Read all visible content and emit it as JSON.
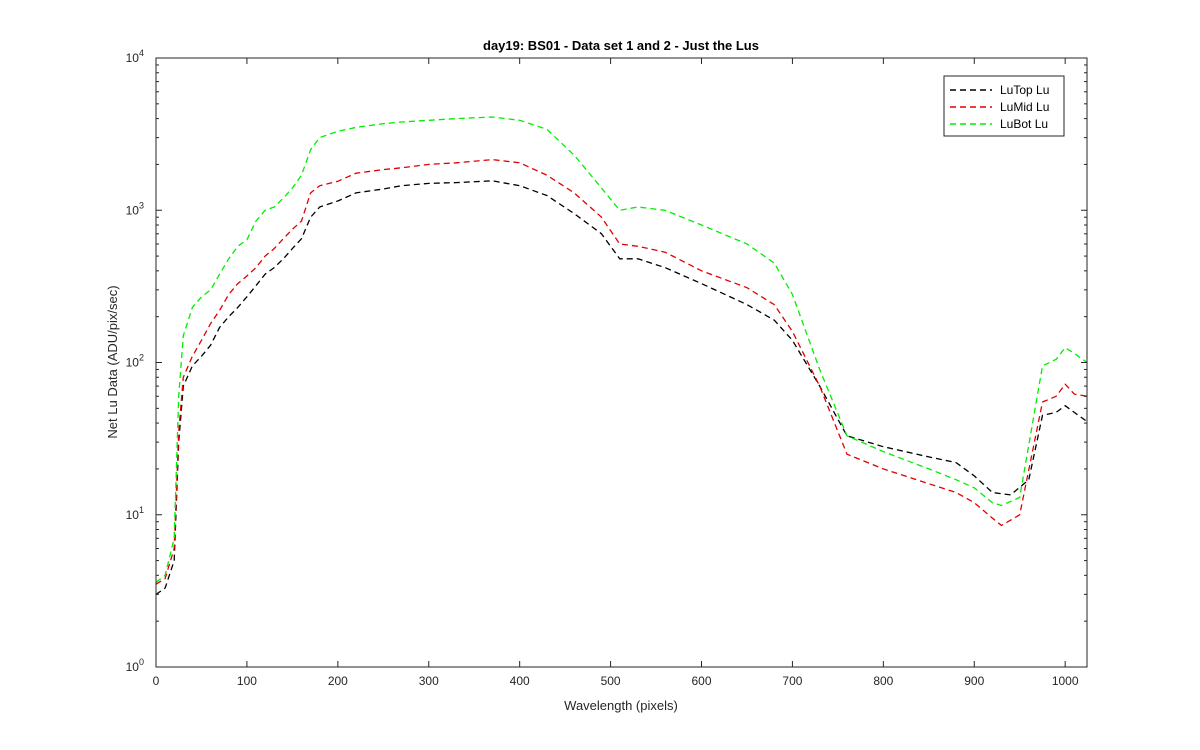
{
  "chart_data": {
    "type": "line",
    "title": "day19: BS01 - Data set 1 and 2 - Just the Lus",
    "xlabel": "Wavelength (pixels)",
    "ylabel": "Net Lu Data (ADU/pix/sec)",
    "xlim": [
      0,
      1024
    ],
    "ylim": [
      1,
      10000
    ],
    "yscale": "log",
    "x_ticks": [
      0,
      100,
      200,
      300,
      400,
      500,
      600,
      700,
      800,
      900,
      1000
    ],
    "y_ticks": [
      {
        "value": 1,
        "base": "10",
        "exp": "0"
      },
      {
        "value": 10,
        "base": "10",
        "exp": "1"
      },
      {
        "value": 100,
        "base": "10",
        "exp": "2"
      },
      {
        "value": 1000,
        "base": "10",
        "exp": "3"
      },
      {
        "value": 10000,
        "base": "10",
        "exp": "4"
      }
    ],
    "legend_position": "top-right",
    "series": [
      {
        "name": "LuTop  Lu",
        "color": "#000000",
        "x": [
          0,
          10,
          20,
          25,
          30,
          40,
          50,
          60,
          70,
          80,
          90,
          100,
          110,
          120,
          130,
          140,
          150,
          160,
          170,
          180,
          200,
          220,
          250,
          270,
          300,
          330,
          370,
          400,
          430,
          460,
          490,
          510,
          530,
          560,
          600,
          650,
          680,
          700,
          730,
          760,
          800,
          850,
          880,
          900,
          920,
          940,
          960,
          975,
          990,
          1000,
          1010,
          1024
        ],
        "y": [
          3.0,
          3.3,
          5.0,
          30,
          70,
          95,
          110,
          130,
          170,
          200,
          230,
          270,
          320,
          380,
          420,
          480,
          560,
          650,
          900,
          1050,
          1150,
          1300,
          1380,
          1450,
          1500,
          1520,
          1560,
          1450,
          1250,
          950,
          700,
          480,
          480,
          420,
          330,
          240,
          190,
          140,
          70,
          33,
          28,
          24,
          22,
          18,
          14,
          13.5,
          17,
          45,
          47,
          52,
          47,
          41
        ]
      },
      {
        "name": "LuMid  Lu",
        "color": "#e00000",
        "x": [
          0,
          10,
          20,
          25,
          30,
          40,
          50,
          60,
          70,
          80,
          90,
          100,
          110,
          120,
          130,
          140,
          150,
          160,
          170,
          180,
          200,
          220,
          250,
          270,
          300,
          330,
          370,
          400,
          430,
          460,
          490,
          510,
          530,
          560,
          600,
          650,
          680,
          700,
          730,
          760,
          800,
          850,
          880,
          900,
          920,
          930,
          950,
          975,
          990,
          1000,
          1010,
          1024
        ],
        "y": [
          3.5,
          3.8,
          6.0,
          35,
          80,
          110,
          140,
          180,
          220,
          280,
          330,
          370,
          420,
          500,
          560,
          650,
          750,
          850,
          1300,
          1450,
          1550,
          1750,
          1850,
          1900,
          2000,
          2050,
          2150,
          2050,
          1700,
          1300,
          900,
          600,
          580,
          530,
          400,
          310,
          240,
          160,
          70,
          25,
          20,
          16,
          14,
          12,
          9.5,
          8.5,
          10,
          55,
          60,
          72,
          62,
          60
        ]
      },
      {
        "name": "LuBot  Lu",
        "color": "#00ee00",
        "x": [
          0,
          10,
          20,
          25,
          30,
          40,
          50,
          60,
          70,
          80,
          90,
          100,
          110,
          120,
          130,
          140,
          150,
          160,
          170,
          180,
          200,
          220,
          250,
          270,
          300,
          330,
          370,
          400,
          430,
          460,
          490,
          510,
          530,
          560,
          600,
          650,
          680,
          700,
          730,
          760,
          800,
          850,
          880,
          900,
          920,
          930,
          950,
          975,
          990,
          1000,
          1010,
          1024
        ],
        "y": [
          3.6,
          4.0,
          7.0,
          60,
          150,
          230,
          270,
          300,
          380,
          480,
          580,
          640,
          850,
          1000,
          1050,
          1200,
          1400,
          1700,
          2500,
          3000,
          3300,
          3500,
          3700,
          3800,
          3900,
          4000,
          4100,
          3900,
          3400,
          2300,
          1400,
          1000,
          1050,
          1000,
          800,
          600,
          450,
          280,
          90,
          33,
          26,
          20,
          17,
          15,
          12,
          11.5,
          13,
          95,
          105,
          125,
          115,
          100
        ]
      }
    ]
  }
}
